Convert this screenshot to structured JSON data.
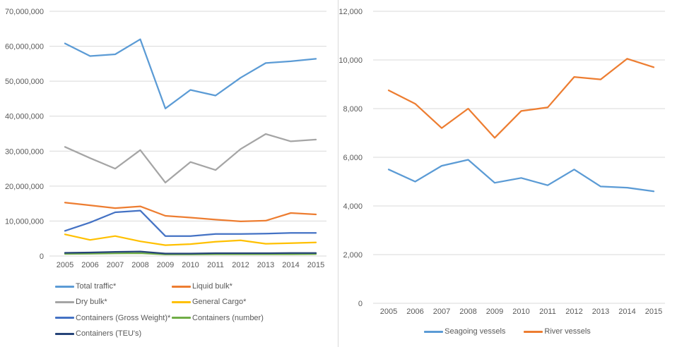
{
  "colors": {
    "grid": "#d9d9d9",
    "axis_text": "#595959",
    "divider": "#d9d9d9"
  },
  "chart_data": [
    {
      "type": "line",
      "title": "",
      "xlabel": "",
      "ylabel": "",
      "grid": true,
      "legend_position": "bottom-left-two-columns",
      "categories": [
        "2005",
        "2006",
        "2007",
        "2008",
        "2009",
        "2010",
        "2011",
        "2012",
        "2013",
        "2014",
        "2015"
      ],
      "ylim": [
        0,
        70000000
      ],
      "ytick_labels": [
        "70,000,000",
        "60,000,000",
        "50,000,000",
        "40,000,000",
        "30,000,000",
        "20,000,000",
        "10,000,000",
        "0"
      ],
      "series": [
        {
          "name": "Total traffic*",
          "color": "#5b9bd5",
          "values": [
            60800000,
            57200000,
            57700000,
            62000000,
            42200000,
            47500000,
            45900000,
            51000000,
            55200000,
            55700000,
            56400000
          ]
        },
        {
          "name": "Liquid bulk*",
          "color": "#ed7d31",
          "values": [
            15300000,
            14500000,
            13700000,
            14200000,
            11500000,
            11000000,
            10400000,
            9900000,
            10100000,
            12300000,
            11900000
          ]
        },
        {
          "name": "Dry bulk*",
          "color": "#a5a5a5",
          "values": [
            31200000,
            28000000,
            25000000,
            30300000,
            21000000,
            26900000,
            24600000,
            30600000,
            34900000,
            32800000,
            33300000
          ]
        },
        {
          "name": "General Cargo*",
          "color": "#ffc000",
          "values": [
            6200000,
            4600000,
            5700000,
            4200000,
            3100000,
            3400000,
            4100000,
            4500000,
            3500000,
            3700000,
            3900000
          ]
        },
        {
          "name": "Containers (Gross Weight)*",
          "color": "#4472c4",
          "values": [
            7200000,
            9600000,
            12500000,
            13000000,
            5700000,
            5700000,
            6300000,
            6300000,
            6400000,
            6600000,
            6600000
          ]
        },
        {
          "name": "Containers (number)",
          "color": "#70ad47",
          "values": [
            600000,
            650000,
            750000,
            800000,
            450000,
            450000,
            500000,
            500000,
            500000,
            500000,
            550000
          ]
        },
        {
          "name": "Containers (TEU's)",
          "color": "#264478",
          "values": [
            900000,
            1000000,
            1200000,
            1300000,
            700000,
            700000,
            800000,
            800000,
            800000,
            850000,
            850000
          ]
        }
      ]
    },
    {
      "type": "line",
      "title": "",
      "xlabel": "",
      "ylabel": "",
      "grid": true,
      "legend_position": "bottom-center",
      "categories": [
        "2005",
        "2006",
        "2007",
        "2008",
        "2009",
        "2010",
        "2011",
        "2012",
        "2013",
        "2014",
        "2015"
      ],
      "ylim": [
        0,
        12000
      ],
      "ytick_labels": [
        "12,000",
        "10,000",
        "8,000",
        "6,000",
        "4,000",
        "2,000",
        "0"
      ],
      "series": [
        {
          "name": "Seagoing vessels",
          "color": "#5b9bd5",
          "values": [
            5500,
            5000,
            5650,
            5900,
            4950,
            5150,
            4850,
            5500,
            4800,
            4750,
            4600
          ]
        },
        {
          "name": "River vessels",
          "color": "#ed7d31",
          "values": [
            8750,
            8200,
            7200,
            8000,
            6800,
            7900,
            8050,
            9300,
            9200,
            10050,
            9700
          ]
        }
      ]
    }
  ]
}
